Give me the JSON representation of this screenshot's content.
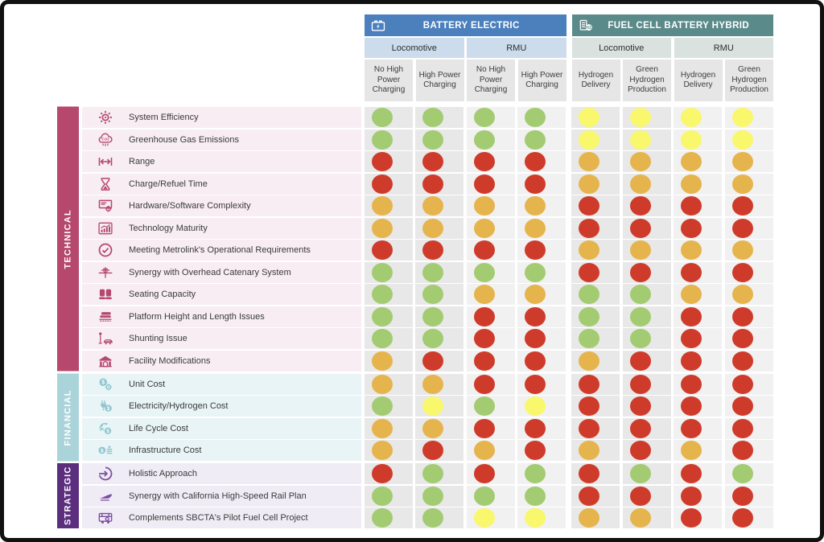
{
  "colors": {
    "battery_header_bg": "#4b80bd",
    "fuelcell_header_bg": "#5b8a8a",
    "battery_subheader_bg": "#ccdcec",
    "fuelcell_subheader_bg": "#d9e2de",
    "column_header_bg": "#e6e6e6",
    "locomotive_col_bg": "#e8e8e8",
    "rmu_col_bg": "#f1f1f1",
    "technical_bar": "#b5486c",
    "financial_bar": "#aad4da",
    "strategic_bar": "#5c2e7e",
    "technical_row_bg": "#f7edf3",
    "financial_row_bg": "#e9f4f6",
    "strategic_row_bg": "#f0ecf5",
    "technical_icon": "#b5486c",
    "financial_icon": "#8fc6cf",
    "strategic_icon": "#7a4fa0"
  },
  "chart_data": {
    "type": "heatmap",
    "legend": {
      "green": "#a3cb72",
      "yellow": "#f9f76c",
      "orange": "#e6b44d",
      "red": "#cf3b2a"
    },
    "column_groups": [
      {
        "label": "BATTERY ELECTRIC",
        "icon": "battery-icon",
        "subgroups": [
          {
            "label": "Locomotive",
            "shade": "locomotive_col_bg",
            "columns": [
              "No High Power Charging",
              "High Power Charging"
            ]
          },
          {
            "label": "RMU",
            "shade": "rmu_col_bg",
            "columns": [
              "No High Power Charging",
              "High Power Charging"
            ]
          }
        ]
      },
      {
        "label": "FUEL CELL BATTERY HYBRID",
        "icon": "fuelcell-h2-icon",
        "subgroups": [
          {
            "label": "Locomotive",
            "shade": "locomotive_col_bg",
            "columns": [
              "Hydrogen Delivery",
              "Green Hydrogen Production"
            ]
          },
          {
            "label": "RMU",
            "shade": "rmu_col_bg",
            "columns": [
              "Hydrogen Delivery",
              "Green Hydrogen Production"
            ]
          }
        ]
      }
    ],
    "categories": [
      {
        "label": "TECHNICAL",
        "rows": [
          {
            "label": "System Efficiency",
            "icon": "gears-icon",
            "ratings": [
              "green",
              "green",
              "green",
              "green",
              "yellow",
              "yellow",
              "yellow",
              "yellow"
            ]
          },
          {
            "label": "Greenhouse Gas Emissions",
            "icon": "co2-cloud-icon",
            "ratings": [
              "green",
              "green",
              "green",
              "green",
              "yellow",
              "yellow",
              "yellow",
              "yellow"
            ]
          },
          {
            "label": "Range",
            "icon": "range-arrows-icon",
            "ratings": [
              "red",
              "red",
              "red",
              "red",
              "orange",
              "orange",
              "orange",
              "orange"
            ]
          },
          {
            "label": "Charge/Refuel Time",
            "icon": "hourglass-icon",
            "ratings": [
              "red",
              "red",
              "red",
              "red",
              "orange",
              "orange",
              "orange",
              "orange"
            ]
          },
          {
            "label": "Hardware/Software Complexity",
            "icon": "monitor-gear-icon",
            "ratings": [
              "orange",
              "orange",
              "orange",
              "orange",
              "red",
              "red",
              "red",
              "red"
            ]
          },
          {
            "label": "Technology Maturity",
            "icon": "growth-chart-icon",
            "ratings": [
              "orange",
              "orange",
              "orange",
              "orange",
              "red",
              "red",
              "red",
              "red"
            ]
          },
          {
            "label": "Meeting Metrolink's Operational Requirements",
            "icon": "check-circle-icon",
            "ratings": [
              "red",
              "red",
              "red",
              "red",
              "orange",
              "orange",
              "orange",
              "orange"
            ]
          },
          {
            "label": "Synergy with Overhead Catenary System",
            "icon": "catenary-icon",
            "ratings": [
              "green",
              "green",
              "green",
              "green",
              "red",
              "red",
              "red",
              "red"
            ]
          },
          {
            "label": "Seating Capacity",
            "icon": "seats-icon",
            "ratings": [
              "green",
              "green",
              "orange",
              "orange",
              "green",
              "green",
              "orange",
              "orange"
            ]
          },
          {
            "label": "Platform Height and Length Issues",
            "icon": "platform-train-icon",
            "ratings": [
              "green",
              "green",
              "red",
              "red",
              "green",
              "green",
              "red",
              "red"
            ]
          },
          {
            "label": "Shunting Issue",
            "icon": "shunting-signal-icon",
            "ratings": [
              "green",
              "green",
              "red",
              "red",
              "green",
              "green",
              "red",
              "red"
            ]
          },
          {
            "label": "Facility Modifications",
            "icon": "facility-building-icon",
            "ratings": [
              "orange",
              "red",
              "red",
              "red",
              "orange",
              "red",
              "red",
              "red"
            ]
          }
        ]
      },
      {
        "label": "FINANCIAL",
        "rows": [
          {
            "label": "Unit Cost",
            "icon": "dollar-gear-icon",
            "ratings": [
              "orange",
              "orange",
              "red",
              "red",
              "red",
              "red",
              "red",
              "red"
            ]
          },
          {
            "label": "Electricity/Hydrogen Cost",
            "icon": "plug-dollar-icon",
            "ratings": [
              "green",
              "yellow",
              "green",
              "yellow",
              "red",
              "red",
              "red",
              "red"
            ]
          },
          {
            "label": "Life Cycle Cost",
            "icon": "lifecycle-dollar-icon",
            "ratings": [
              "orange",
              "orange",
              "red",
              "red",
              "red",
              "red",
              "red",
              "red"
            ]
          },
          {
            "label": "Infrastructure Cost",
            "icon": "dollar-infrastructure-icon",
            "ratings": [
              "orange",
              "red",
              "orange",
              "red",
              "orange",
              "red",
              "orange",
              "red"
            ]
          }
        ]
      },
      {
        "label": "STRATEGIC",
        "rows": [
          {
            "label": "Holistic Approach",
            "icon": "arrow-circle-icon",
            "ratings": [
              "red",
              "green",
              "red",
              "green",
              "red",
              "green",
              "red",
              "green"
            ]
          },
          {
            "label": "Synergy with California High-Speed Rail Plan",
            "icon": "highspeed-train-icon",
            "ratings": [
              "green",
              "green",
              "green",
              "green",
              "red",
              "red",
              "red",
              "red"
            ]
          },
          {
            "label": "Complements SBCTA's Pilot Fuel Cell Project",
            "icon": "fuelcell-bus-icon",
            "ratings": [
              "green",
              "green",
              "yellow",
              "yellow",
              "orange",
              "orange",
              "red",
              "red"
            ]
          }
        ]
      }
    ]
  }
}
